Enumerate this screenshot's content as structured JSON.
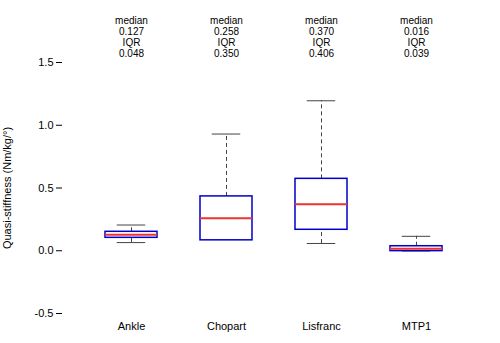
{
  "chart_data": {
    "type": "box",
    "categories": [
      "Ankle",
      "Chopart",
      "Lisfranc",
      "MTP1"
    ],
    "medians": [
      0.127,
      0.258,
      0.37,
      0.016
    ],
    "q1": [
      0.103,
      0.083,
      0.167,
      -0.003
    ],
    "q3": [
      0.151,
      0.433,
      0.573,
      0.036
    ],
    "whisker_low": [
      0.065,
      0.09,
      0.058,
      -0.002
    ],
    "whisker_high": [
      0.205,
      0.93,
      1.195,
      0.115
    ],
    "annotations": [
      "median\n0.127\nIQR\n0.048",
      "median\n0.258\nIQR\n0.350",
      "median\n0.370\nIQR\n0.406",
      "median\n0.016\nIQR\n0.039"
    ],
    "box_color": "#0000CC",
    "median_color": "#EE3333",
    "whisker_color": "#444444",
    "ylabel": "Quasi-stiffness (Nm/kg/°)",
    "ylim": [
      -0.5,
      1.5
    ],
    "yticks": [
      -0.5,
      {
        "value": 0,
        "label": "0.0"
      },
      0.5,
      {
        "value": 1.0,
        "label": "1.0"
      },
      1.5
    ]
  }
}
